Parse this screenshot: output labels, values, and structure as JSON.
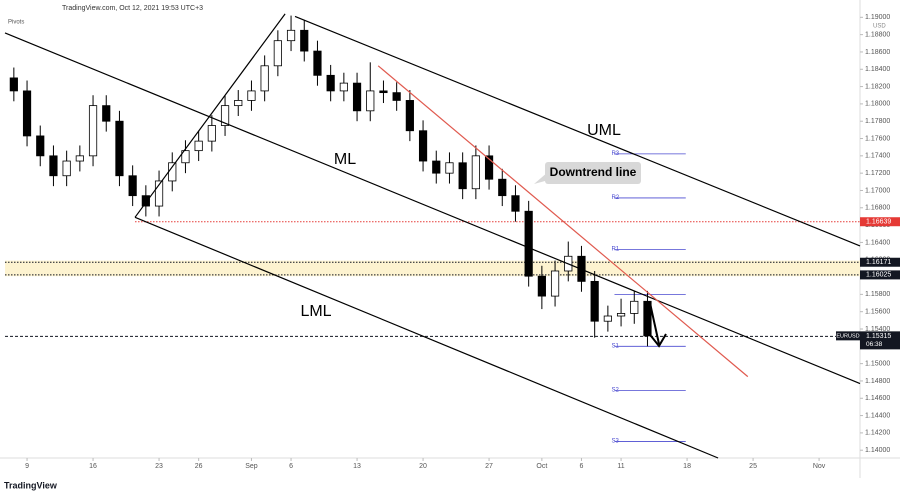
{
  "chart_data": {
    "type": "candlestick",
    "header": "TradingView.com, Oct 12, 2021 19:53 UTC+3",
    "indicator": "Pivots",
    "currency": "USD",
    "symbol": "EURUSD",
    "countdown": "06:38",
    "brand": "TradingView",
    "xlim": [
      -1.67,
      63.1
    ],
    "ylim": [
      1.1391,
      1.192
    ],
    "xticks": [
      {
        "value": 0,
        "label": "9"
      },
      {
        "value": 5,
        "label": "16"
      },
      {
        "value": 10,
        "label": "23"
      },
      {
        "value": 13,
        "label": "26"
      },
      {
        "value": 17,
        "label": "Sep"
      },
      {
        "value": 20,
        "label": "6"
      },
      {
        "value": 25,
        "label": "13"
      },
      {
        "value": 30,
        "label": "20"
      },
      {
        "value": 35,
        "label": "27"
      },
      {
        "value": 39,
        "label": "Oct"
      },
      {
        "value": 42,
        "label": "6"
      },
      {
        "value": 45,
        "label": "11"
      },
      {
        "value": 50,
        "label": "18"
      },
      {
        "value": 55,
        "label": "25"
      },
      {
        "value": 60,
        "label": "Nov"
      }
    ],
    "yticks": [
      {
        "value": 1.14,
        "label": "1.14000"
      },
      {
        "value": 1.142,
        "label": "1.14200"
      },
      {
        "value": 1.144,
        "label": "1.14400"
      },
      {
        "value": 1.146,
        "label": "1.14600"
      },
      {
        "value": 1.148,
        "label": "1.14800"
      },
      {
        "value": 1.15,
        "label": "1.15000"
      },
      {
        "value": 1.152,
        "label": "1.15200"
      },
      {
        "value": 1.154,
        "label": "1.15400"
      },
      {
        "value": 1.156,
        "label": "1.15600"
      },
      {
        "value": 1.158,
        "label": "1.15800"
      },
      {
        "value": 1.16,
        "label": "1.16000"
      },
      {
        "value": 1.162,
        "label": "1.16200"
      },
      {
        "value": 1.164,
        "label": "1.16400"
      },
      {
        "value": 1.166,
        "label": "1.16600"
      },
      {
        "value": 1.168,
        "label": "1.16800"
      },
      {
        "value": 1.17,
        "label": "1.17000"
      },
      {
        "value": 1.172,
        "label": "1.17200"
      },
      {
        "value": 1.174,
        "label": "1.17400"
      },
      {
        "value": 1.176,
        "label": "1.17600"
      },
      {
        "value": 1.178,
        "label": "1.17800"
      },
      {
        "value": 1.18,
        "label": "1.18000"
      },
      {
        "value": 1.182,
        "label": "1.18200"
      },
      {
        "value": 1.184,
        "label": "1.18400"
      },
      {
        "value": 1.186,
        "label": "1.18600"
      },
      {
        "value": 1.188,
        "label": "1.18800"
      },
      {
        "value": 1.19,
        "label": "1.19000"
      }
    ],
    "x": [
      -1,
      0,
      1,
      2,
      3,
      4,
      5,
      6,
      7,
      8,
      9,
      10,
      11,
      12,
      13,
      14,
      15,
      16,
      17,
      18,
      19,
      20,
      21,
      22,
      23,
      24,
      25,
      26,
      27,
      28,
      29,
      30,
      31,
      32,
      33,
      34,
      35,
      36,
      37,
      38,
      39,
      40,
      41,
      42,
      43,
      44,
      45,
      46,
      47
    ],
    "open": [
      1.183,
      1.1815,
      1.1763,
      1.174,
      1.1717,
      1.1734,
      1.174,
      1.1798,
      1.178,
      1.1717,
      1.1694,
      1.1682,
      1.1711,
      1.1732,
      1.1746,
      1.1757,
      1.1775,
      1.1798,
      1.1804,
      1.1815,
      1.1844,
      1.1873,
      1.1885,
      1.1861,
      1.1833,
      1.1815,
      1.1824,
      1.1792,
      1.1815,
      1.1813,
      1.1804,
      1.1769,
      1.1734,
      1.172,
      1.1732,
      1.1702,
      1.174,
      1.1713,
      1.1694,
      1.1676,
      1.1601,
      1.1578,
      1.1607,
      1.1624,
      1.1595,
      1.1549,
      1.1555,
      1.1558,
      1.1572
    ],
    "high": [
      1.1842,
      1.1827,
      1.1775,
      1.1752,
      1.1746,
      1.1752,
      1.181,
      1.181,
      1.1792,
      1.1729,
      1.1706,
      1.1723,
      1.1744,
      1.1758,
      1.1769,
      1.1787,
      1.181,
      1.1816,
      1.1827,
      1.1856,
      1.1885,
      1.1902,
      1.1897,
      1.1873,
      1.1845,
      1.1836,
      1.1836,
      1.1848,
      1.1827,
      1.1825,
      1.1816,
      1.1781,
      1.1746,
      1.1744,
      1.1744,
      1.1752,
      1.1752,
      1.1725,
      1.1706,
      1.1688,
      1.1613,
      1.1619,
      1.1641,
      1.1636,
      1.1607,
      1.1567,
      1.1575,
      1.1584,
      1.1584
    ],
    "low": [
      1.1803,
      1.1751,
      1.1728,
      1.1705,
      1.1705,
      1.1722,
      1.1728,
      1.1768,
      1.1705,
      1.1682,
      1.167,
      1.167,
      1.1699,
      1.172,
      1.1734,
      1.1745,
      1.1763,
      1.1786,
      1.1792,
      1.1803,
      1.1832,
      1.1861,
      1.1849,
      1.1821,
      1.1803,
      1.1803,
      1.178,
      1.178,
      1.1801,
      1.1792,
      1.1757,
      1.1722,
      1.1708,
      1.1708,
      1.169,
      1.169,
      1.1701,
      1.1682,
      1.1664,
      1.1589,
      1.1563,
      1.1566,
      1.1595,
      1.1583,
      1.153,
      1.1537,
      1.1543,
      1.1546,
      1.152
    ],
    "close": [
      1.1815,
      1.1763,
      1.174,
      1.1717,
      1.1734,
      1.174,
      1.1798,
      1.178,
      1.1717,
      1.1694,
      1.1682,
      1.1711,
      1.1732,
      1.1746,
      1.1757,
      1.1775,
      1.1798,
      1.1804,
      1.1815,
      1.1844,
      1.1873,
      1.1885,
      1.1861,
      1.1833,
      1.1815,
      1.1824,
      1.1792,
      1.1815,
      1.1813,
      1.1804,
      1.1769,
      1.1734,
      1.172,
      1.1732,
      1.1702,
      1.174,
      1.1713,
      1.1694,
      1.1676,
      1.1601,
      1.1578,
      1.1607,
      1.1624,
      1.1595,
      1.1549,
      1.1555,
      1.1558,
      1.1572,
      1.1532
    ],
    "up_color": "#ffffff",
    "down_color": "#000000",
    "trend_lines": [
      {
        "label": "UML",
        "x": [
          20.3,
          63.1
        ],
        "y": [
          1.1901,
          1.1636
        ],
        "color": "#000000"
      },
      {
        "label": "ML",
        "x": [
          -1.67,
          63.1
        ],
        "y": [
          1.1882,
          1.1477
        ],
        "color": "#000000"
      },
      {
        "label": "LML",
        "x": [
          8.18,
          52.35
        ],
        "y": [
          1.1669,
          1.1391
        ],
        "color": "#000000"
      },
      {
        "x": [
          8.18,
          19.55
        ],
        "y": [
          1.1669,
          1.1904
        ],
        "color": "#000000"
      },
      {
        "label": "Downtrend line",
        "x": [
          26.6,
          54.6
        ],
        "y": [
          1.1844,
          1.1485
        ],
        "color": "#e05a4f"
      }
    ],
    "zone": {
      "low": 1.1601,
      "high": 1.1619,
      "color": "#fdf3d0"
    },
    "levels": [
      {
        "value": 1.16639,
        "color": "#e53935",
        "from": 8.18
      },
      {
        "value": 1.16171,
        "color": "#131722",
        "from": -1.67
      },
      {
        "value": 1.16025,
        "color": "#131722",
        "from": -1.67
      },
      {
        "value": 1.15315,
        "color": "#131722",
        "from": -1.67
      }
    ],
    "pivots": {
      "x": [
        44.5,
        49.9
      ],
      "color": "#4a4ad0",
      "levels": [
        {
          "name": "R3",
          "value": 1.17423
        },
        {
          "name": "R2",
          "value": 1.16914
        },
        {
          "name": "R1",
          "value": 1.1632
        },
        {
          "value": 1.158
        },
        {
          "name": "S1",
          "value": 1.152
        },
        {
          "name": "S2",
          "value": 1.1469
        },
        {
          "name": "S3",
          "value": 1.141
        }
      ]
    }
  }
}
